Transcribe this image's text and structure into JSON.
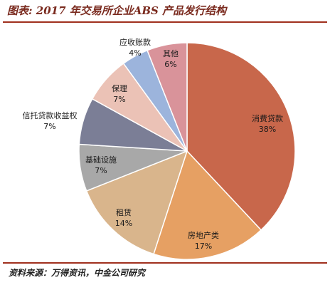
{
  "header": {
    "title": "图表: 2017 年交易所企业ABS 产品发行结构"
  },
  "footer": {
    "source": "资料来源：万得资讯，中金公司研究"
  },
  "chart_data": {
    "type": "pie",
    "title": "图表: 2017 年交易所企业ABS 产品发行结构",
    "slices": [
      {
        "label": "消费贷款",
        "value": 38,
        "display": "38%",
        "color": "#c8674b"
      },
      {
        "label": "房地产类",
        "value": 17,
        "display": "17%",
        "color": "#e6a063"
      },
      {
        "label": "租赁",
        "value": 14,
        "display": "14%",
        "color": "#d9b58c"
      },
      {
        "label": "基础设施",
        "value": 7,
        "display": "7%",
        "color": "#a8a8a8"
      },
      {
        "label": "信托贷款收益权",
        "value": 7,
        "display": "7%",
        "color": "#7b7e96"
      },
      {
        "label": "保理",
        "value": 7,
        "display": "7%",
        "color": "#ebc2b6"
      },
      {
        "label": "应收账款",
        "value": 4,
        "display": "4%",
        "color": "#9cb4dc"
      },
      {
        "label": "其他",
        "value": 6,
        "display": "6%",
        "color": "#d9939a"
      }
    ]
  }
}
